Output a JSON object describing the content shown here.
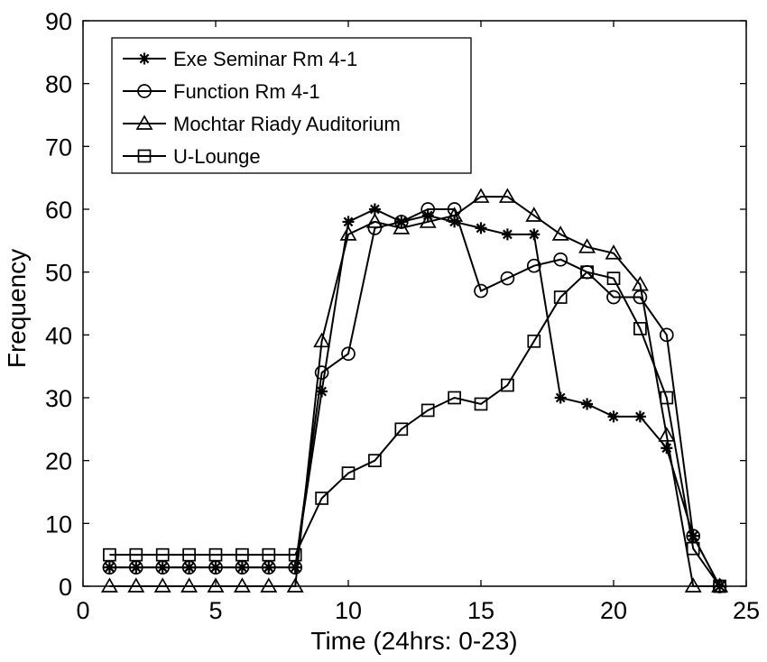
{
  "chart_data": {
    "type": "line",
    "title": "",
    "xlabel": "Time (24hrs: 0-23)",
    "ylabel": "Frequency",
    "xlim": [
      0,
      25
    ],
    "ylim": [
      0,
      90
    ],
    "xticks": [
      0,
      5,
      10,
      15,
      20,
      25
    ],
    "yticks": [
      0,
      10,
      20,
      30,
      40,
      50,
      60,
      70,
      80,
      90
    ],
    "grid": false,
    "legend_position": "top-left",
    "x": [
      1,
      2,
      3,
      4,
      5,
      6,
      7,
      8,
      9,
      10,
      11,
      12,
      13,
      14,
      15,
      16,
      17,
      18,
      19,
      20,
      21,
      22,
      23,
      24
    ],
    "series": [
      {
        "name": "Exe Seminar Rm 4-1",
        "marker": "asterisk",
        "values": [
          3,
          3,
          3,
          3,
          3,
          3,
          3,
          3,
          31,
          58,
          60,
          58,
          59,
          58,
          57,
          56,
          56,
          30,
          29,
          27,
          27,
          22,
          8,
          0
        ]
      },
      {
        "name": "Function Rm 4-1",
        "marker": "circle",
        "values": [
          3,
          3,
          3,
          3,
          3,
          3,
          3,
          3,
          34,
          37,
          57,
          58,
          60,
          60,
          47,
          49,
          51,
          52,
          50,
          46,
          46,
          40,
          8,
          0
        ]
      },
      {
        "name": "Mochtar Riady Auditorium",
        "marker": "triangle",
        "values": [
          0,
          0,
          0,
          0,
          0,
          0,
          0,
          0,
          39,
          56,
          58,
          57,
          58,
          59,
          62,
          62,
          59,
          56,
          54,
          53,
          48,
          24,
          0,
          0
        ]
      },
      {
        "name": "U-Lounge",
        "marker": "square",
        "values": [
          5,
          5,
          5,
          5,
          5,
          5,
          5,
          5,
          14,
          18,
          20,
          25,
          28,
          30,
          29,
          32,
          39,
          46,
          50,
          49,
          41,
          30,
          6,
          0
        ]
      }
    ]
  }
}
